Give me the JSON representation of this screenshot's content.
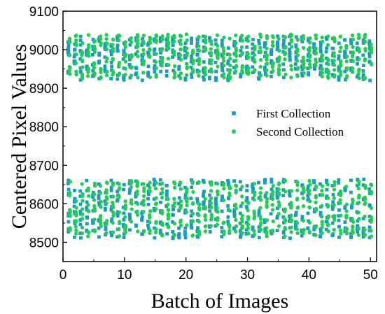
{
  "chart_data": {
    "type": "scatter",
    "title": "",
    "xlabel": "Batch of Images",
    "ylabel": "Centered Pixel Values",
    "xlim": [
      0,
      51
    ],
    "ylim": [
      8450,
      9100
    ],
    "xticks": [
      0,
      10,
      20,
      30,
      40,
      50
    ],
    "yticks": [
      8500,
      8600,
      8700,
      8800,
      8900,
      9000,
      9100
    ],
    "grid": false,
    "legend_position": "right-middle",
    "batches": 50,
    "series": [
      {
        "name": "First Collection",
        "marker": "square",
        "color": "#1a9bb8",
        "bands": [
          {
            "min": 8920,
            "max": 9035
          },
          {
            "min": 8510,
            "max": 8665
          }
        ]
      },
      {
        "name": "Second Collection",
        "marker": "circle",
        "color": "#22cc55",
        "bands": [
          {
            "min": 8925,
            "max": 9040
          },
          {
            "min": 8515,
            "max": 8660
          }
        ]
      }
    ]
  }
}
